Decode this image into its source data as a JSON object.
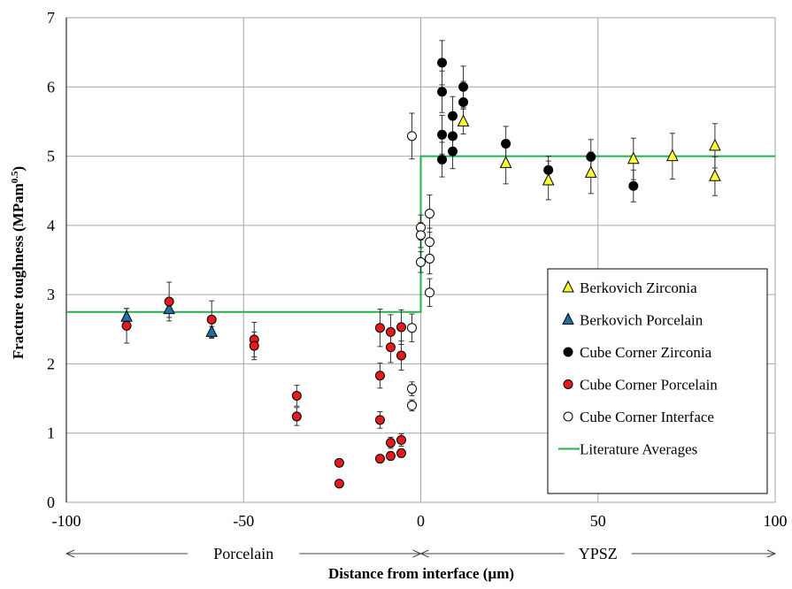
{
  "chart_data": {
    "type": "scatter",
    "xlabel": "Distance from interface (µm)",
    "ylabel_main": "Fracture toughness (MPam",
    "ylabel_sup": "0.5",
    "ylabel_end": ")",
    "xlim": [
      -100,
      100
    ],
    "ylim": [
      0,
      7
    ],
    "xticks": [
      -100,
      -50,
      0,
      50,
      100
    ],
    "yticks": [
      0,
      1,
      2,
      3,
      4,
      5,
      6,
      7
    ],
    "grid": true,
    "legend_position": "bottom-right",
    "regions": [
      {
        "label": "Porcelain",
        "from": -100,
        "to": 0
      },
      {
        "label": "YPSZ",
        "from": 0,
        "to": 100
      }
    ],
    "literature_averages": {
      "name": "Literature Averages",
      "color": "#22b14c",
      "points": [
        [
          -100,
          2.75
        ],
        [
          0,
          2.75
        ],
        [
          0,
          5.0
        ],
        [
          100,
          5.0
        ]
      ]
    },
    "series": [
      {
        "name": "Berkovich Zirconia",
        "marker": "triangle",
        "color": "#ffff33",
        "points": [
          {
            "x": 12,
            "y": 5.5,
            "err": 0.18
          },
          {
            "x": 24,
            "y": 4.9,
            "err": 0.3
          },
          {
            "x": 36,
            "y": 4.65,
            "err": 0.28
          },
          {
            "x": 48,
            "y": 4.76,
            "err": 0.3
          },
          {
            "x": 60,
            "y": 4.96,
            "err": 0.3
          },
          {
            "x": 71,
            "y": 5.0,
            "err": 0.33
          },
          {
            "x": 83,
            "y": 5.15,
            "err": 0.32
          },
          {
            "x": 83,
            "y": 4.71,
            "err": 0.28
          }
        ]
      },
      {
        "name": "Berkovich Porcelain",
        "marker": "triangle",
        "color": "#1f6fa8",
        "points": [
          {
            "x": -83,
            "y": 2.68,
            "err": 0.12
          },
          {
            "x": -71,
            "y": 2.79,
            "err": 0.12
          },
          {
            "x": -59,
            "y": 2.46,
            "err": 0.08
          }
        ]
      },
      {
        "name": "Cube Corner Zirconia",
        "marker": "circle",
        "color": "#000000",
        "points": [
          {
            "x": 6,
            "y": 6.35,
            "err": 0.32
          },
          {
            "x": 6,
            "y": 5.93,
            "err": 0.3
          },
          {
            "x": 6,
            "y": 5.31,
            "err": 0.28
          },
          {
            "x": 6,
            "y": 4.95,
            "err": 0.25
          },
          {
            "x": 9,
            "y": 5.58,
            "err": 0.28
          },
          {
            "x": 9,
            "y": 5.29,
            "err": 0.25
          },
          {
            "x": 9,
            "y": 5.07,
            "err": 0.25
          },
          {
            "x": 12,
            "y": 6.0,
            "err": 0.3
          },
          {
            "x": 12,
            "y": 5.78,
            "err": 0.3
          },
          {
            "x": 24,
            "y": 5.18,
            "err": 0.25
          },
          {
            "x": 36,
            "y": 4.8,
            "err": 0.2
          },
          {
            "x": 48,
            "y": 4.99,
            "err": 0.25
          },
          {
            "x": 60,
            "y": 4.57,
            "err": 0.23
          }
        ]
      },
      {
        "name": "Cube Corner Porcelain",
        "marker": "circle",
        "color": "#e51b1b",
        "points": [
          {
            "x": -83,
            "y": 2.55,
            "err": 0.25
          },
          {
            "x": -71,
            "y": 2.9,
            "err": 0.28
          },
          {
            "x": -59,
            "y": 2.64,
            "err": 0.27
          },
          {
            "x": -47,
            "y": 2.35,
            "err": 0.25
          },
          {
            "x": -47,
            "y": 2.26,
            "err": 0.2
          },
          {
            "x": -35,
            "y": 1.54,
            "err": 0.15
          },
          {
            "x": -35,
            "y": 1.24,
            "err": 0.13
          },
          {
            "x": -23,
            "y": 0.57,
            "err": 0
          },
          {
            "x": -23,
            "y": 0.27,
            "err": 0
          },
          {
            "x": -11.5,
            "y": 2.52,
            "err": 0.27
          },
          {
            "x": -11.5,
            "y": 1.83,
            "err": 0.18
          },
          {
            "x": -11.5,
            "y": 1.19,
            "err": 0.12
          },
          {
            "x": -11.5,
            "y": 0.63,
            "err": 0
          },
          {
            "x": -8.5,
            "y": 2.46,
            "err": 0.25
          },
          {
            "x": -8.5,
            "y": 2.24,
            "err": 0.22
          },
          {
            "x": -8.5,
            "y": 0.86,
            "err": 0.08
          },
          {
            "x": -8.5,
            "y": 0.67,
            "err": 0.06
          },
          {
            "x": -5.5,
            "y": 2.53,
            "err": 0.25
          },
          {
            "x": -5.5,
            "y": 2.12,
            "err": 0.21
          },
          {
            "x": -5.5,
            "y": 0.9,
            "err": 0.09
          },
          {
            "x": -5.5,
            "y": 0.71,
            "err": 0.06
          }
        ]
      },
      {
        "name": "Cube Corner Interface",
        "marker": "circle",
        "color": "#ffffff",
        "points": [
          {
            "x": -2.5,
            "y": 5.29,
            "err": 0.33
          },
          {
            "x": -2.5,
            "y": 2.52,
            "err": 0.2
          },
          {
            "x": -2.5,
            "y": 1.64,
            "err": 0.1
          },
          {
            "x": -2.5,
            "y": 1.4,
            "err": 0.08
          },
          {
            "x": 0,
            "y": 3.97,
            "err": 0.18
          },
          {
            "x": 0,
            "y": 3.86,
            "err": 0.18
          },
          {
            "x": 0,
            "y": 3.47,
            "err": 0.15
          },
          {
            "x": 2.5,
            "y": 4.17,
            "err": 0.27
          },
          {
            "x": 2.5,
            "y": 3.76,
            "err": 0.2
          },
          {
            "x": 2.5,
            "y": 3.52,
            "err": 0.22
          },
          {
            "x": 2.5,
            "y": 3.03,
            "err": 0.2
          }
        ]
      }
    ]
  }
}
